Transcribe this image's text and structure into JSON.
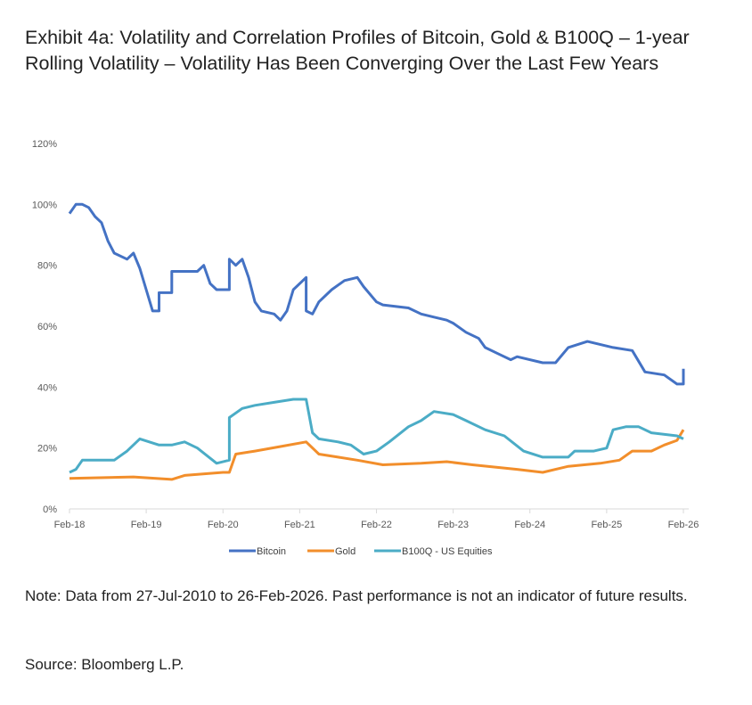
{
  "title": "Exhibit 4a: Volatility and Correlation Profiles of Bitcoin, Gold & B100Q – 1-year Rolling Volatility – Volatility Has Been Converging Over the Last Few Years",
  "note": "Note: Data from 27-Jul-2010 to 26-Feb-2026. Past performance is not an indicator of future results.",
  "source": "Source: Bloomberg L.P.",
  "chart_data": {
    "type": "line",
    "title": "",
    "xlabel": "",
    "ylabel": "",
    "ylim": [
      0,
      120
    ],
    "yticks": [
      "0%",
      "20%",
      "40%",
      "60%",
      "80%",
      "100%",
      "120%"
    ],
    "xticks": [
      "Feb-18",
      "Feb-19",
      "Feb-20",
      "Feb-21",
      "Feb-22",
      "Feb-23",
      "Feb-24",
      "Feb-25",
      "Feb-26"
    ],
    "xrange": [
      "2018-02",
      "2026-02"
    ],
    "grid": false,
    "legend": "bottom",
    "series": [
      {
        "name": "Bitcoin",
        "color": "#4472c4",
        "points": [
          [
            "2018-02",
            97
          ],
          [
            "2018-03",
            100
          ],
          [
            "2018-04",
            100
          ],
          [
            "2018-05",
            99
          ],
          [
            "2018-06",
            96
          ],
          [
            "2018-07",
            94
          ],
          [
            "2018-08",
            88
          ],
          [
            "2018-09",
            84
          ],
          [
            "2018-11",
            82
          ],
          [
            "2018-12",
            84
          ],
          [
            "2019-01",
            79
          ],
          [
            "2019-02",
            72
          ],
          [
            "2019-03",
            65
          ],
          [
            "2019-04",
            65
          ],
          [
            "2019-04",
            71
          ],
          [
            "2019-06",
            71
          ],
          [
            "2019-06",
            78
          ],
          [
            "2019-10",
            78
          ],
          [
            "2019-11",
            80
          ],
          [
            "2019-12",
            74
          ],
          [
            "2020-01",
            72
          ],
          [
            "2020-03",
            72
          ],
          [
            "2020-03",
            82
          ],
          [
            "2020-04",
            80
          ],
          [
            "2020-05",
            82
          ],
          [
            "2020-06",
            76
          ],
          [
            "2020-07",
            68
          ],
          [
            "2020-08",
            65
          ],
          [
            "2020-10",
            64
          ],
          [
            "2020-11",
            62
          ],
          [
            "2020-12",
            65
          ],
          [
            "2021-01",
            72
          ],
          [
            "2021-03",
            76
          ],
          [
            "2021-03",
            65
          ],
          [
            "2021-04",
            64
          ],
          [
            "2021-05",
            68
          ],
          [
            "2021-07",
            72
          ],
          [
            "2021-09",
            75
          ],
          [
            "2021-11",
            76
          ],
          [
            "2021-12",
            73
          ],
          [
            "2022-02",
            68
          ],
          [
            "2022-03",
            67
          ],
          [
            "2022-07",
            66
          ],
          [
            "2022-09",
            64
          ],
          [
            "2022-11",
            63
          ],
          [
            "2023-01",
            62
          ],
          [
            "2023-02",
            61
          ],
          [
            "2023-04",
            58
          ],
          [
            "2023-06",
            56
          ],
          [
            "2023-07",
            53
          ],
          [
            "2023-09",
            51
          ],
          [
            "2023-11",
            49
          ],
          [
            "2023-12",
            50
          ],
          [
            "2024-04",
            48
          ],
          [
            "2024-06",
            48
          ],
          [
            "2024-08",
            53
          ],
          [
            "2024-11",
            55
          ],
          [
            "2025-03",
            53
          ],
          [
            "2025-06",
            52
          ],
          [
            "2025-08",
            45
          ],
          [
            "2025-11",
            44
          ],
          [
            "2026-01",
            41
          ],
          [
            "2026-02",
            41
          ],
          [
            "2026-02",
            46
          ]
        ]
      },
      {
        "name": "Gold",
        "color": "#f28e2b",
        "points": [
          [
            "2018-02",
            10
          ],
          [
            "2018-12",
            10.5
          ],
          [
            "2019-06",
            9.7
          ],
          [
            "2019-08",
            11
          ],
          [
            "2020-02",
            12
          ],
          [
            "2020-03",
            12
          ],
          [
            "2020-04",
            18
          ],
          [
            "2020-07",
            19
          ],
          [
            "2020-11",
            20.5
          ],
          [
            "2021-03",
            22
          ],
          [
            "2021-05",
            18
          ],
          [
            "2021-08",
            17
          ],
          [
            "2021-11",
            16
          ],
          [
            "2022-03",
            14.5
          ],
          [
            "2022-09",
            15
          ],
          [
            "2023-01",
            15.5
          ],
          [
            "2023-05",
            14.5
          ],
          [
            "2023-12",
            13
          ],
          [
            "2024-04",
            12
          ],
          [
            "2024-08",
            14
          ],
          [
            "2025-01",
            15
          ],
          [
            "2025-04",
            16
          ],
          [
            "2025-06",
            19
          ],
          [
            "2025-09",
            19
          ],
          [
            "2025-11",
            21
          ],
          [
            "2026-01",
            22.5
          ],
          [
            "2026-02",
            26
          ]
        ]
      },
      {
        "name": "B100Q - US Equities",
        "color": "#4bacc6",
        "points": [
          [
            "2018-02",
            12
          ],
          [
            "2018-03",
            13
          ],
          [
            "2018-04",
            16
          ],
          [
            "2018-09",
            16
          ],
          [
            "2018-11",
            19
          ],
          [
            "2019-01",
            23
          ],
          [
            "2019-04",
            21
          ],
          [
            "2019-06",
            21
          ],
          [
            "2019-08",
            22
          ],
          [
            "2019-10",
            20
          ],
          [
            "2020-01",
            15
          ],
          [
            "2020-03",
            16
          ],
          [
            "2020-03",
            30
          ],
          [
            "2020-05",
            33
          ],
          [
            "2020-07",
            34
          ],
          [
            "2020-10",
            35
          ],
          [
            "2021-01",
            36
          ],
          [
            "2021-03",
            36
          ],
          [
            "2021-04",
            25
          ],
          [
            "2021-05",
            23
          ],
          [
            "2021-08",
            22
          ],
          [
            "2021-10",
            21
          ],
          [
            "2021-12",
            18
          ],
          [
            "2022-02",
            19
          ],
          [
            "2022-04",
            22
          ],
          [
            "2022-07",
            27
          ],
          [
            "2022-09",
            29
          ],
          [
            "2022-11",
            32
          ],
          [
            "2023-02",
            31
          ],
          [
            "2023-04",
            29
          ],
          [
            "2023-07",
            26
          ],
          [
            "2023-10",
            24
          ],
          [
            "2024-01",
            19
          ],
          [
            "2024-04",
            17
          ],
          [
            "2024-08",
            17
          ],
          [
            "2024-09",
            19
          ],
          [
            "2024-12",
            19
          ],
          [
            "2025-02",
            20
          ],
          [
            "2025-03",
            26
          ],
          [
            "2025-05",
            27
          ],
          [
            "2025-07",
            27
          ],
          [
            "2025-09",
            25
          ],
          [
            "2026-01",
            24
          ],
          [
            "2026-02",
            23
          ]
        ]
      }
    ]
  }
}
